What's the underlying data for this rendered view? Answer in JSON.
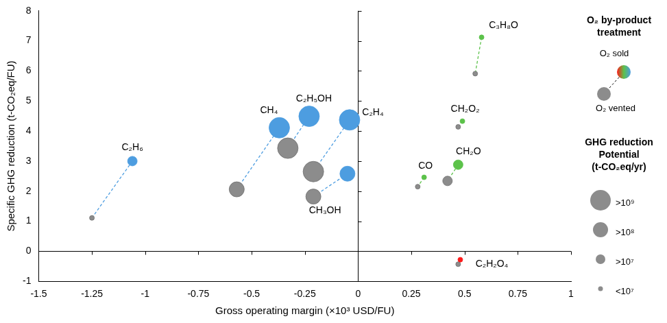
{
  "chart_data": {
    "type": "bubble",
    "x_label": "Gross operating margin (×10³ USD/FU)",
    "y_label": "Specific GHG reduction (t-CO₂eq/FU)",
    "xlim": [
      -1.5,
      1
    ],
    "xticks": [
      -1.5,
      -1.25,
      -1,
      -0.75,
      -0.5,
      -0.25,
      0,
      0.25,
      0.5,
      0.75,
      1
    ],
    "ylim": [
      -1,
      8
    ],
    "yticks": [
      -1,
      0,
      1,
      2,
      3,
      4,
      5,
      6,
      7,
      8
    ],
    "grid": false,
    "legend": "right",
    "legend_title": "O₂ by-product treatment",
    "treatments": [
      {
        "label": "O₂ sold"
      },
      {
        "label": "O₂ vented",
        "color": "#8c8c8c"
      }
    ],
    "size_title": "GHG reduction Potential (t-CO₂eq/yr)",
    "size_classes": [
      ">10⁹",
      ">10⁸",
      ">10⁷",
      "<10⁷"
    ],
    "series": [
      {
        "name": "C₂H₆",
        "color": "#4d9de0",
        "values": [
          {
            "x": -1.06,
            "y": 3.0,
            "size": ">10⁷"
          },
          {
            "x": -1.25,
            "y": 1.11,
            "size": "<10⁷"
          }
        ]
      },
      {
        "name": "CH₄",
        "color": "#4d9de0",
        "values": [
          {
            "x": -0.37,
            "y": 4.11,
            "size": ">10⁹"
          },
          {
            "x": -0.57,
            "y": 2.06,
            "size": ">10⁸"
          }
        ]
      },
      {
        "name": "C₂H₅OH",
        "color": "#4d9de0",
        "values": [
          {
            "x": -0.23,
            "y": 4.49,
            "size": ">10⁹"
          },
          {
            "x": -0.33,
            "y": 3.43,
            "size": ">10⁹"
          }
        ]
      },
      {
        "name": "C₂H₄",
        "color": "#4d9de0",
        "values": [
          {
            "x": -0.04,
            "y": 4.37,
            "size": ">10⁹"
          },
          {
            "x": -0.21,
            "y": 2.65,
            "size": ">10⁹"
          }
        ]
      },
      {
        "name": "CH₃OH",
        "color": "#4d9de0",
        "values": [
          {
            "x": -0.05,
            "y": 2.58,
            "size": ">10⁸"
          },
          {
            "x": -0.21,
            "y": 1.82,
            "size": ">10⁸"
          }
        ]
      },
      {
        "name": "C₃H₈O",
        "color": "#5cc24a",
        "values": [
          {
            "x": 0.58,
            "y": 7.12,
            "size": "<10⁷"
          },
          {
            "x": 0.55,
            "y": 5.91,
            "size": "<10⁷"
          }
        ]
      },
      {
        "name": "CH₂O₂",
        "color": "#5cc24a",
        "values": [
          {
            "x": 0.49,
            "y": 4.33,
            "size": "<10⁷"
          },
          {
            "x": 0.47,
            "y": 4.14,
            "size": "<10⁷"
          }
        ]
      },
      {
        "name": "CO",
        "color": "#5cc24a",
        "values": [
          {
            "x": 0.31,
            "y": 2.46,
            "size": "<10⁷"
          },
          {
            "x": 0.28,
            "y": 2.15,
            "size": "<10⁷"
          }
        ]
      },
      {
        "name": "CH₂O",
        "color": "#5cc24a",
        "values": [
          {
            "x": 0.47,
            "y": 2.88,
            "size": ">10⁷"
          },
          {
            "x": 0.42,
            "y": 2.34,
            "size": ">10⁷"
          }
        ]
      },
      {
        "name": "C₂H₂O₄",
        "color": "#ff1a1a",
        "values": [
          {
            "x": 0.48,
            "y": -0.28,
            "size": "<10⁷"
          },
          {
            "x": 0.47,
            "y": -0.43,
            "size": "<10⁷"
          }
        ]
      }
    ]
  }
}
